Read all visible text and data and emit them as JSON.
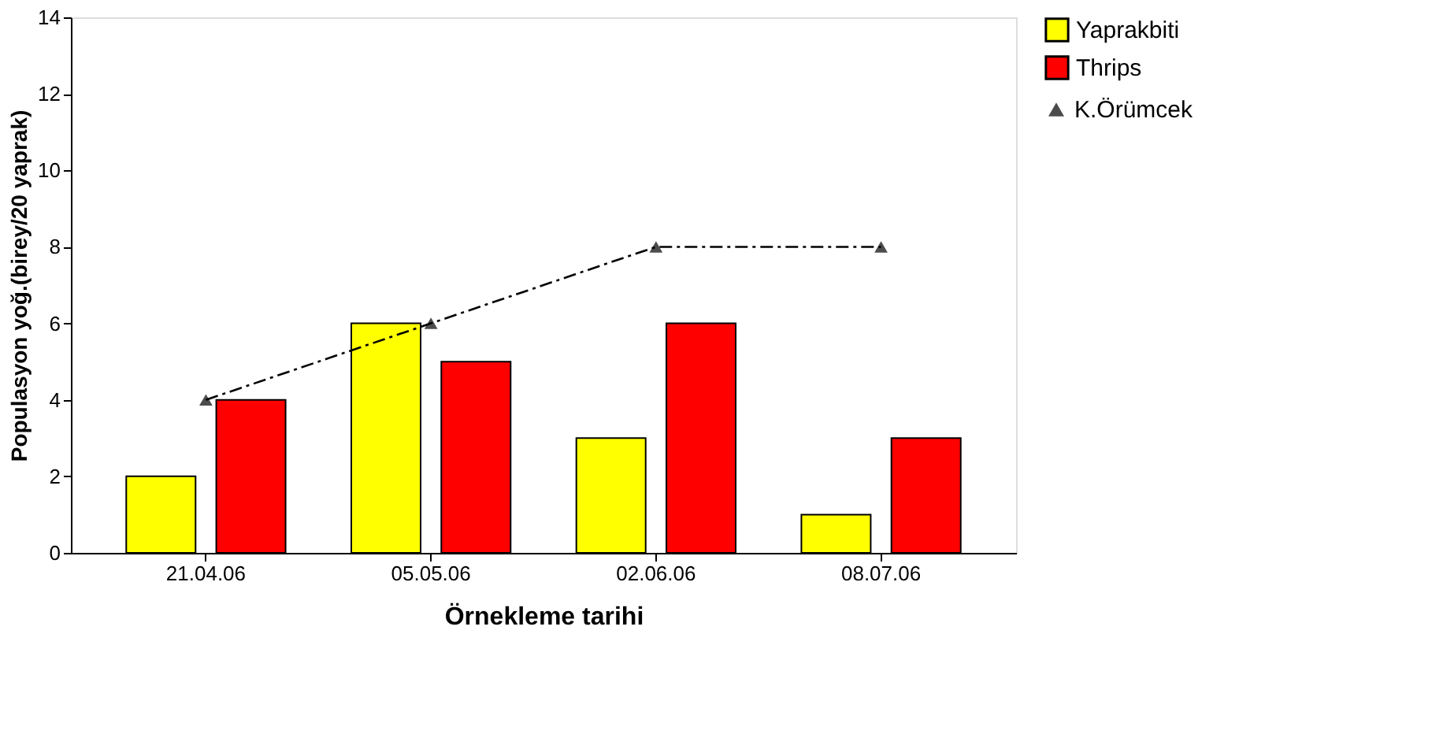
{
  "chart_data": {
    "type": "bar",
    "xlabel": "Örnekleme tarihi",
    "ylabel": "Populasyon yoğ.(birey/20 yaprak)",
    "categories": [
      "21.04.06",
      "05.05.06",
      "02.06.06",
      "08.07.06"
    ],
    "series": [
      {
        "name": "Yaprakbiti",
        "color": "#ffff00",
        "values": [
          2,
          6,
          3,
          1
        ]
      },
      {
        "name": "Thrips",
        "color": "#ff0000",
        "values": [
          4,
          5,
          6,
          3
        ]
      },
      {
        "name": "K.Örümcek",
        "color": "#000000",
        "values": [
          4,
          6,
          8,
          8
        ],
        "type": "line",
        "marker": "triangle",
        "line_style": "dashed"
      }
    ],
    "ylim": [
      0,
      14
    ],
    "yticks": [
      0,
      2,
      4,
      6,
      8,
      10,
      12,
      14
    ],
    "grid": false,
    "legend": "top right"
  }
}
